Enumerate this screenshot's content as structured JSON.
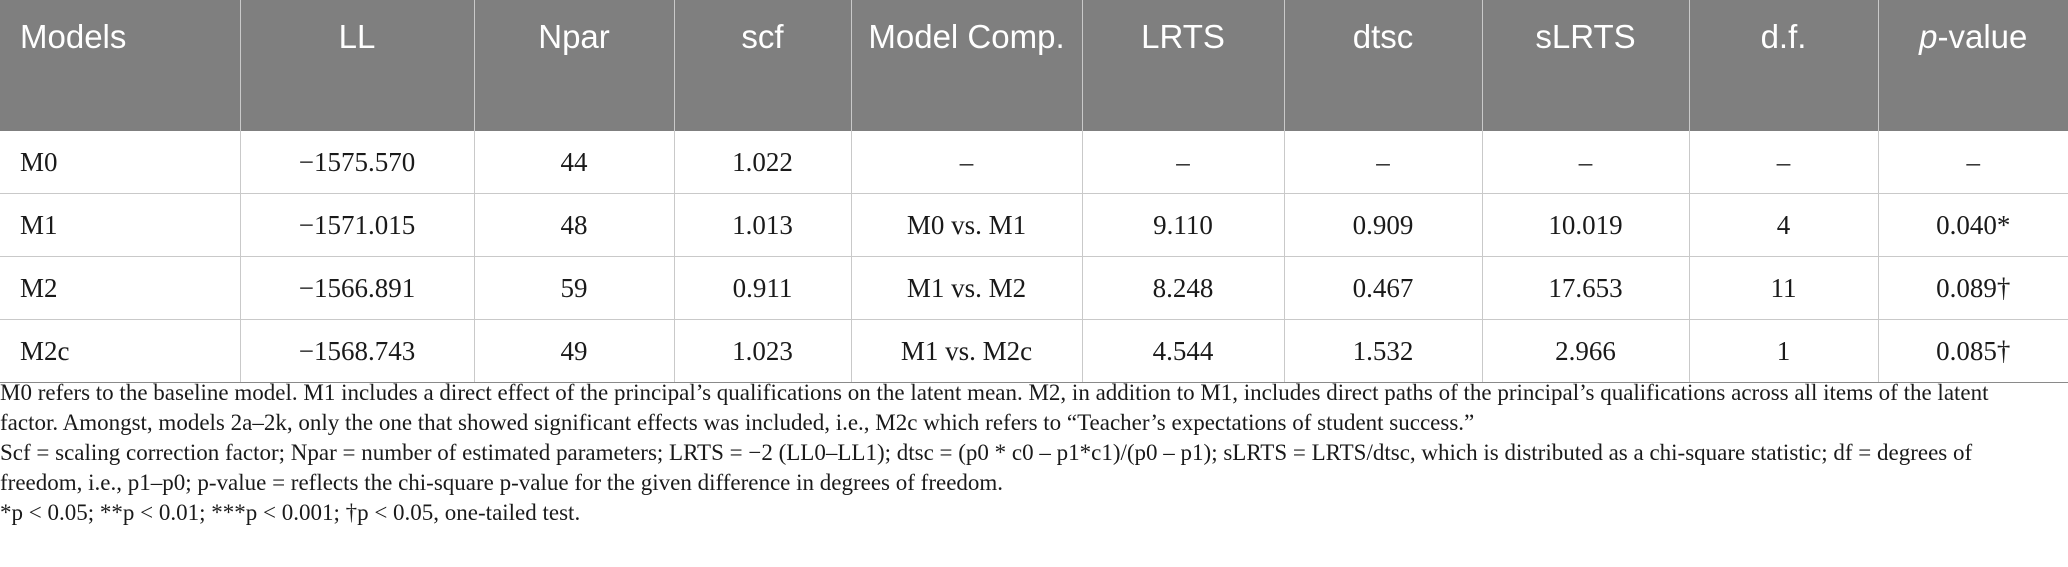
{
  "table": {
    "headers": [
      "Models",
      "LL",
      "Npar",
      "scf",
      "Model Comp.",
      "LRTS",
      "dtsc",
      "sLRTS",
      "d.f.",
      "p-value"
    ],
    "rows": [
      [
        "M0",
        "−1575.570",
        "44",
        "1.022",
        "–",
        "–",
        "–",
        "–",
        "–",
        "–"
      ],
      [
        "M1",
        "−1571.015",
        "48",
        "1.013",
        "M0 vs. M1",
        "9.110",
        "0.909",
        "10.019",
        "4",
        "0.040*"
      ],
      [
        "M2",
        "−1566.891",
        "59",
        "0.911",
        "M1 vs. M2",
        "8.248",
        "0.467",
        "17.653",
        "11",
        "0.089†"
      ],
      [
        "M2c",
        "−1568.743",
        "49",
        "1.023",
        "M1 vs. M2c",
        "4.544",
        "1.532",
        "2.966",
        "1",
        "0.085†"
      ]
    ]
  },
  "notes": {
    "paragraph_1": "M0 refers to the baseline model. M1 includes a direct effect of the principal’s qualifications on the latent mean. M2, in addition to M1, includes direct paths of the principal’s qualifications across all items of the latent factor. Amongst, models 2a–2k, only the one that showed significant effects was included, i.e., M2c which refers to “Teacher’s expectations of student success.”",
    "paragraph_2": "Scf = scaling correction factor; Npar = number of estimated parameters; LRTS = −2 (LL0–LL1); dtsc = (p0 * c0 – p1*c1)/(p0 – p1); sLRTS = LRTS/dtsc, which is distributed as a chi-square statistic; df = degrees of freedom, i.e., p1–p0; p-value = reflects the chi-square p-value for the given difference in degrees of freedom.",
    "paragraph_3": "*p < 0.05; **p < 0.01; ***p < 0.001; †p < 0.05, one-tailed test."
  }
}
